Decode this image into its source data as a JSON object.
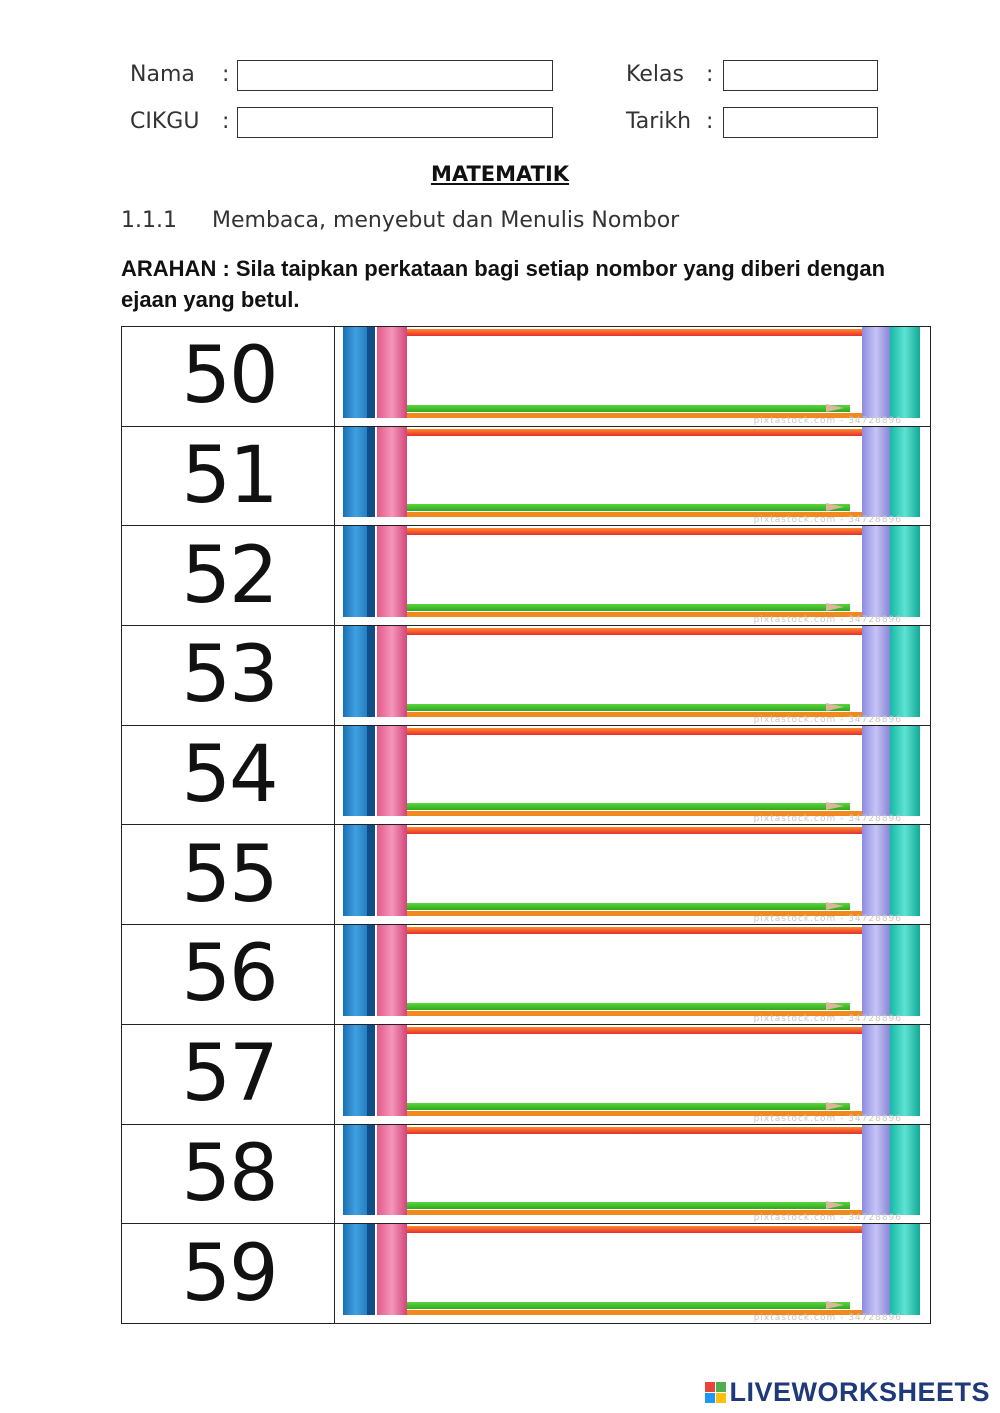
{
  "header": {
    "nama_label": "Nama",
    "cikgu_label": "CIKGU",
    "kelas_label": "Kelas",
    "tarikh_label": "Tarikh",
    "colon": ":",
    "nama_value": "",
    "cikgu_value": "",
    "kelas_value": "",
    "tarikh_value": ""
  },
  "title": "MATEMATIK",
  "subtopic": {
    "number": "1.1.1",
    "text": "Membaca, menyebut dan Menulis Nombor"
  },
  "instruction": "ARAHAN : Sila taipkan perkataan bagi setiap nombor yang diberi dengan ejaan yang betul.",
  "rows": [
    {
      "number": "50",
      "answer": ""
    },
    {
      "number": "51",
      "answer": ""
    },
    {
      "number": "52",
      "answer": ""
    },
    {
      "number": "53",
      "answer": ""
    },
    {
      "number": "54",
      "answer": ""
    },
    {
      "number": "55",
      "answer": ""
    },
    {
      "number": "56",
      "answer": ""
    },
    {
      "number": "57",
      "answer": ""
    },
    {
      "number": "58",
      "answer": ""
    },
    {
      "number": "59",
      "answer": ""
    }
  ],
  "watermark": "pixtastock.com - 34728896",
  "footer": {
    "logo_text": "LIVEWORKSHEETS",
    "logo_mark_letters": [
      "L",
      "W",
      "V",
      "E"
    ],
    "logo_colors": [
      "#e8443a",
      "#4caf50",
      "#2196f3",
      "#ffc107"
    ]
  }
}
